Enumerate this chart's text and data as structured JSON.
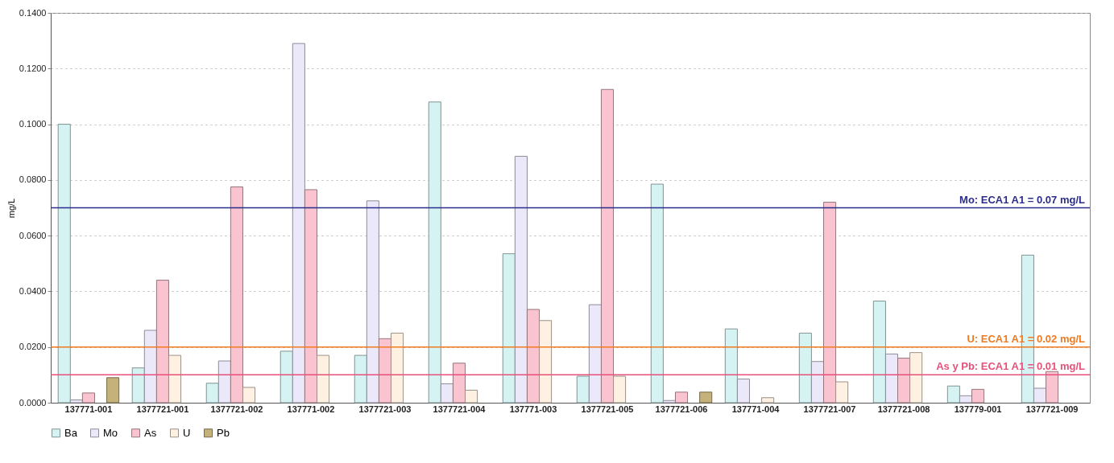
{
  "chart_data": {
    "type": "bar",
    "ylabel": "mg/L",
    "categories": [
      "137771-001",
      "1377721-001",
      "1377721-002",
      "137771-002",
      "1377721-003",
      "1377721-004",
      "137771-003",
      "1377721-005",
      "1377721-006",
      "137771-004",
      "1377721-007",
      "1377721-008",
      "137779-001",
      "1377721-009"
    ],
    "series": [
      {
        "name": "Ba",
        "color": "#d6f3f3",
        "values": [
          0.1,
          0.0125,
          0.007,
          0.0185,
          0.017,
          0.108,
          0.0535,
          0.0095,
          0.0785,
          0.0265,
          0.025,
          0.0365,
          0.006,
          0.053
        ]
      },
      {
        "name": "Mo",
        "color": "#ebe8fa",
        "values": [
          0.001,
          0.026,
          0.015,
          0.129,
          0.0725,
          0.0068,
          0.0885,
          0.0352,
          0.0008,
          0.0085,
          0.0148,
          0.0175,
          0.0025,
          0.0052
        ]
      },
      {
        "name": "As",
        "color": "#f9c3cf",
        "values": [
          0.0035,
          0.044,
          0.0775,
          0.0765,
          0.023,
          0.0142,
          0.0335,
          0.1125,
          0.0038,
          null,
          0.072,
          0.016,
          0.0048,
          0.0112
        ]
      },
      {
        "name": "U",
        "color": "#fff1e2",
        "values": [
          null,
          0.017,
          0.0055,
          0.017,
          0.025,
          0.0045,
          0.0295,
          0.0095,
          null,
          0.0018,
          0.0075,
          0.018,
          null,
          null
        ]
      },
      {
        "name": "Pb",
        "color": "#c4b27a",
        "values": [
          0.009,
          null,
          null,
          null,
          null,
          null,
          null,
          null,
          0.0038,
          null,
          null,
          null,
          null,
          null
        ]
      }
    ],
    "ylim": [
      0,
      0.14
    ],
    "yticks": [
      {
        "value": 0,
        "label": "0.0000"
      },
      {
        "value": 0.02,
        "label": "0.0200"
      },
      {
        "value": 0.04,
        "label": "0.0400"
      },
      {
        "value": 0.06,
        "label": "0.0600"
      },
      {
        "value": 0.08,
        "label": "0.0800"
      },
      {
        "value": 0.1,
        "label": "0.1000"
      },
      {
        "value": 0.12,
        "label": "0.1200"
      },
      {
        "value": 0.14,
        "label": "0.1400"
      }
    ],
    "grid": "y",
    "legend": "bottom",
    "ref_lines": [
      {
        "axis": "y",
        "value": 0.07,
        "label": "Mo: ECA1 A1 = 0.07 mg/L",
        "color": "#2b2d8c"
      },
      {
        "axis": "y",
        "value": 0.02,
        "label": "U: ECA1 A1 = 0.02 mg/L",
        "color": "#f07a20"
      },
      {
        "axis": "y",
        "value": 0.01,
        "label": "As y Pb: ECA1 A1 = 0.01 mg/L",
        "color": "#e8507a"
      }
    ]
  }
}
